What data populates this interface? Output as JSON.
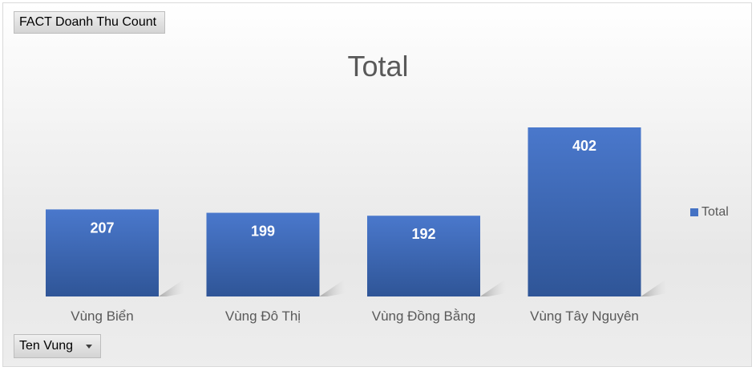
{
  "value_field_button": "FACT Doanh Thu Count",
  "axis_field_button": "Ten Vung",
  "colors": {
    "bar": "#4472c4",
    "bar_dark": "#2f5597"
  },
  "chart_data": {
    "type": "bar",
    "title": "Total",
    "categories": [
      "Vùng Biển",
      "Vùng Đô Thị",
      "Vùng Đồng Bằng",
      "Vùng Tây Nguyên"
    ],
    "series": [
      {
        "name": "Total",
        "values": [
          207,
          199,
          192,
          402
        ]
      }
    ],
    "ylim": [
      0,
      420
    ],
    "grid": false,
    "legend_position": "right",
    "data_labels": true
  }
}
